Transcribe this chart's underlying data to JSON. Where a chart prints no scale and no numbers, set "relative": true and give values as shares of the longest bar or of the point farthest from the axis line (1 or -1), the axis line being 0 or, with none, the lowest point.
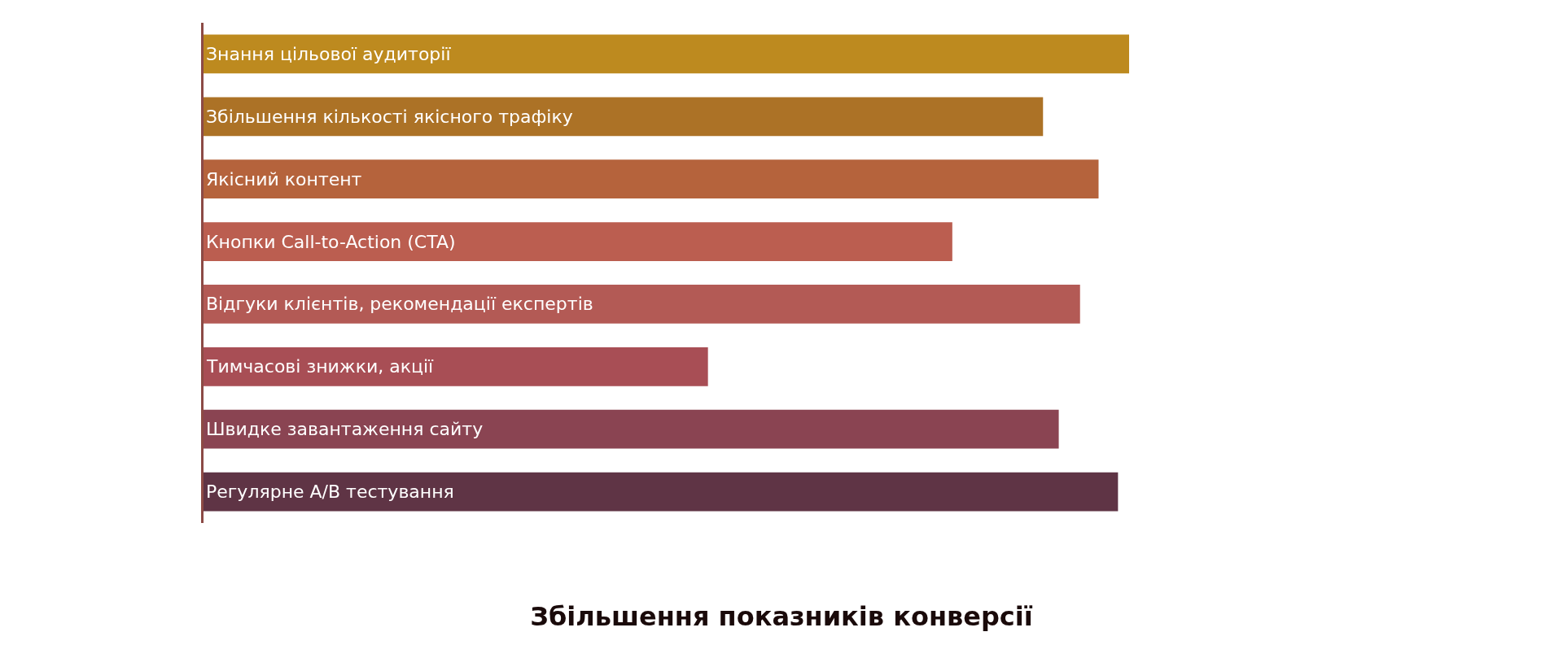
{
  "chart_data": {
    "type": "bar",
    "orientation": "horizontal",
    "relative": true,
    "title": "Збільшення показників конверсії",
    "categories": [
      "Знання цільової аудиторії",
      "Збільшення кількості якісного трафіку",
      "Якісний контент",
      "Кнопки Call-to-Action (CTA)",
      "Відгуки клієнтів, рекомендації експертів",
      "Тимчасові знижки, акції",
      "Швидке завантаження сайту",
      "Регулярне A/B тестування"
    ],
    "values": [
      1,
      0.907,
      0.967,
      0.809,
      0.947,
      0.545,
      0.924,
      0.988
    ],
    "colors": [
      "#bd8a1f",
      "#ac7226",
      "#b5633c",
      "#bb5e50",
      "#b35a55",
      "#a84e55",
      "#8a4452",
      "#5f3445"
    ]
  }
}
